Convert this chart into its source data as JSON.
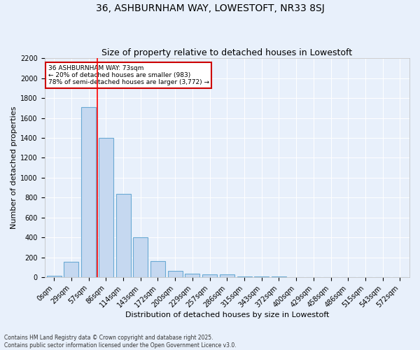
{
  "title": "36, ASHBURNHAM WAY, LOWESTOFT, NR33 8SJ",
  "subtitle": "Size of property relative to detached houses in Lowestoft",
  "xlabel": "Distribution of detached houses by size in Lowestoft",
  "ylabel": "Number of detached properties",
  "footer_line1": "Contains HM Land Registry data © Crown copyright and database right 2025.",
  "footer_line2": "Contains public sector information licensed under the Open Government Licence v3.0.",
  "bin_labels": [
    "0sqm",
    "29sqm",
    "57sqm",
    "86sqm",
    "114sqm",
    "143sqm",
    "172sqm",
    "200sqm",
    "229sqm",
    "257sqm",
    "286sqm",
    "315sqm",
    "343sqm",
    "372sqm",
    "400sqm",
    "429sqm",
    "458sqm",
    "486sqm",
    "515sqm",
    "543sqm",
    "572sqm"
  ],
  "bar_values": [
    15,
    155,
    1710,
    1400,
    835,
    400,
    165,
    65,
    38,
    30,
    30,
    8,
    5,
    5,
    0,
    0,
    0,
    0,
    0,
    0,
    0
  ],
  "bar_color": "#c5d8f0",
  "bar_edge_color": "#6aaad4",
  "background_color": "#e8f0fb",
  "grid_color": "#ffffff",
  "red_line_x": 2.5,
  "annotation_text": "36 ASHBURNHAM WAY: 73sqm\n← 20% of detached houses are smaller (983)\n78% of semi-detached houses are larger (3,772) →",
  "annotation_box_color": "#cc0000",
  "ylim": [
    0,
    2200
  ],
  "yticks": [
    0,
    200,
    400,
    600,
    800,
    1000,
    1200,
    1400,
    1600,
    1800,
    2000,
    2200
  ],
  "title_fontsize": 10,
  "subtitle_fontsize": 9,
  "tick_fontsize": 7,
  "ylabel_fontsize": 8,
  "xlabel_fontsize": 8,
  "footer_fontsize": 5.5
}
